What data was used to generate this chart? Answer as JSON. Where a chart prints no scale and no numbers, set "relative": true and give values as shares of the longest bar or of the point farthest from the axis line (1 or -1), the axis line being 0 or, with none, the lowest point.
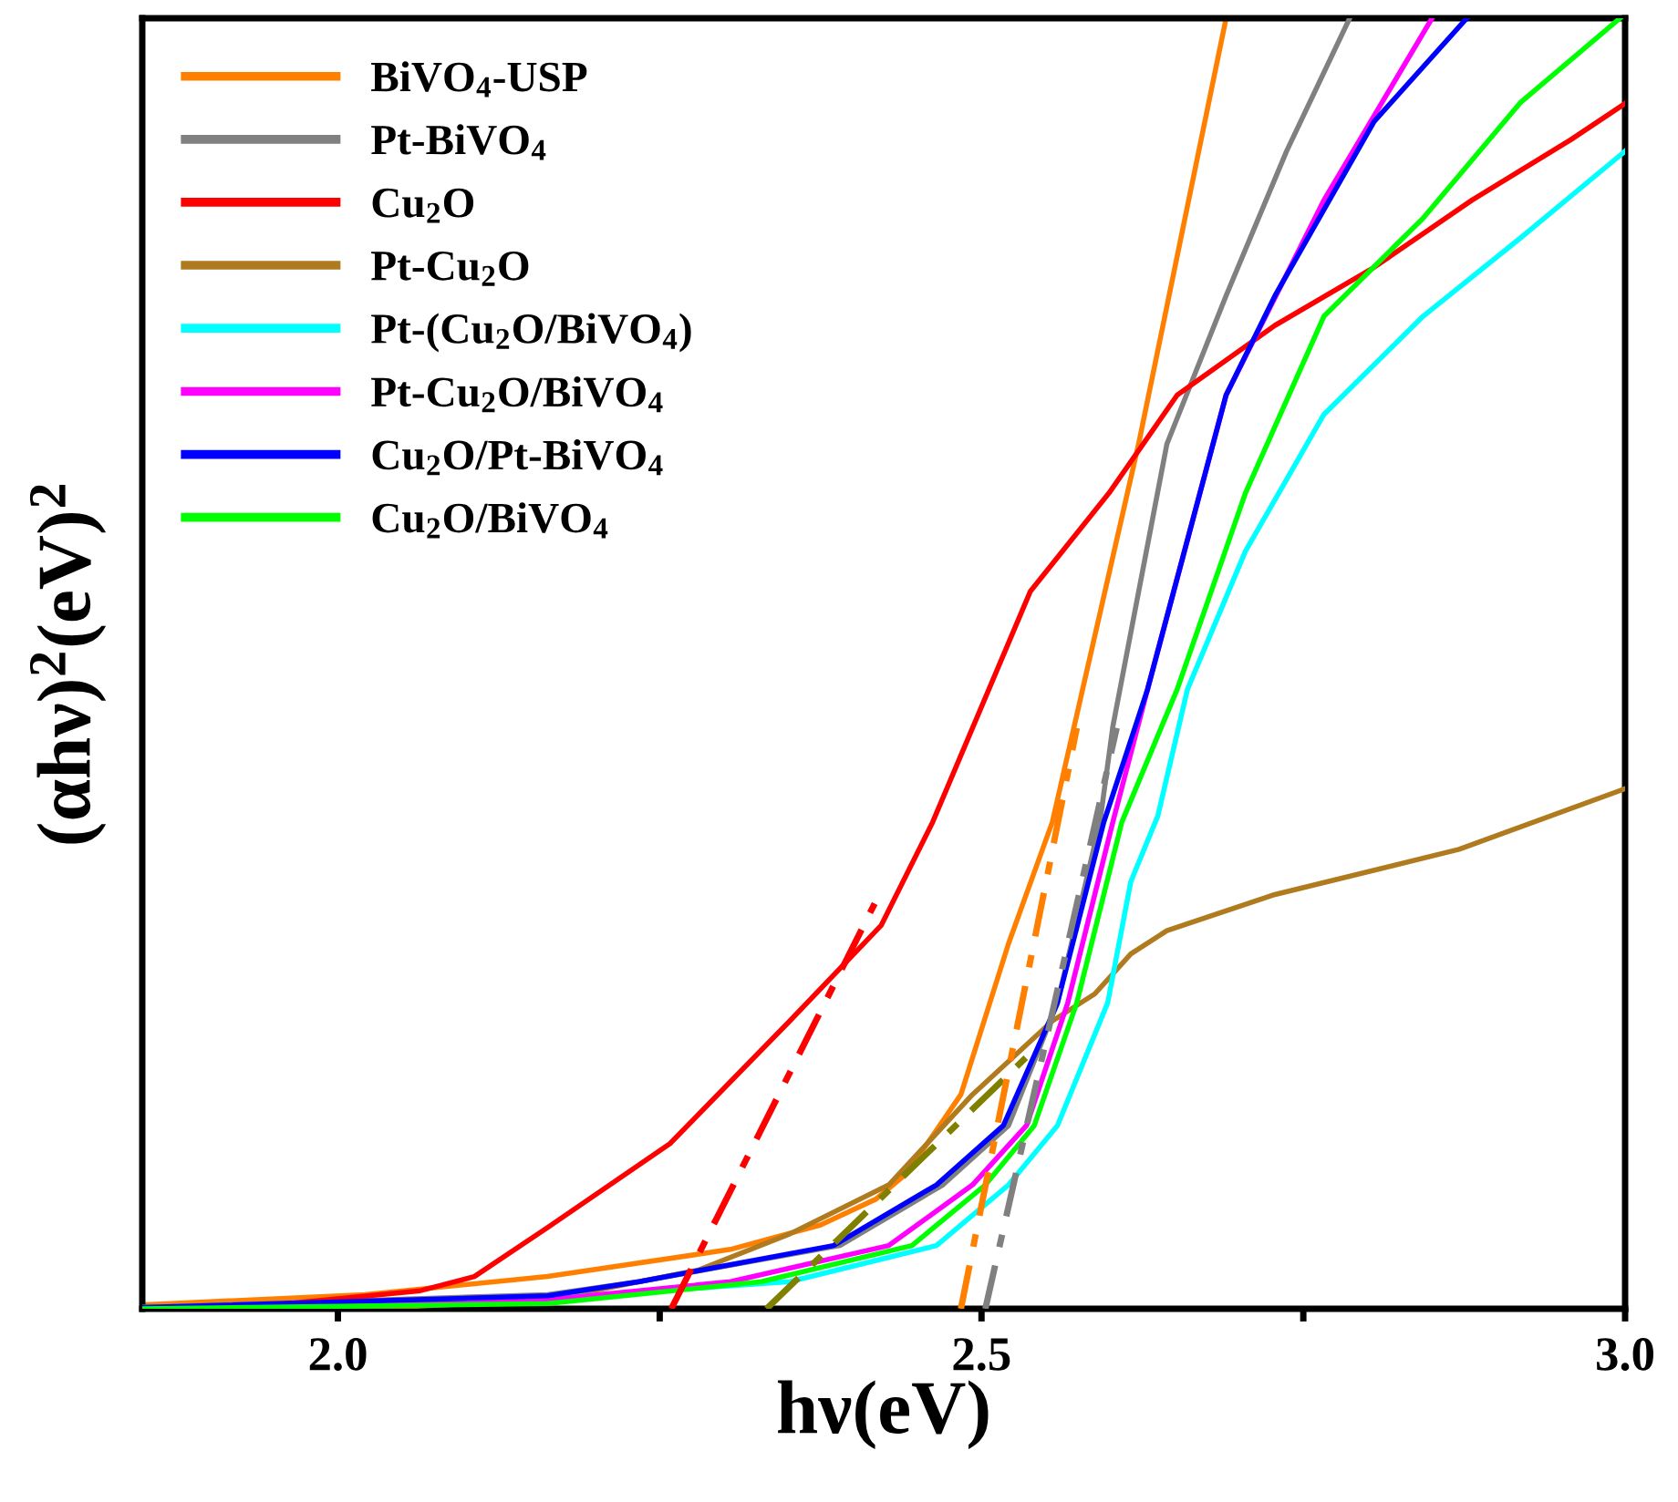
{
  "chart_data": {
    "type": "line",
    "xlabel": "hν(eV)",
    "ylabel": "(αhν)$^{2}$(eV)$^{2}$",
    "relative": true,
    "xlim": [
      1.848,
      3.0
    ],
    "xticks": [
      {
        "value": 2.0,
        "label": "2.0"
      },
      {
        "value": 2.25,
        "label": null
      },
      {
        "value": 2.5,
        "label": "2.5"
      },
      {
        "value": 2.75,
        "label": null
      },
      {
        "value": 3.0,
        "label": "3.0"
      }
    ],
    "legend": "top left",
    "grid": false,
    "marker": "none",
    "line_style": "solid",
    "series": [
      {
        "name": "BiVO$_{4}$-USP",
        "color": "#ff8000",
        "x": [
          1.848,
          2.021,
          2.163,
          2.305,
          2.375,
          2.418,
          2.442,
          2.484,
          2.521,
          2.555,
          2.622,
          2.69
        ],
        "values": [
          0.003,
          0.011,
          0.025,
          0.046,
          0.065,
          0.085,
          0.105,
          0.166,
          0.283,
          0.377,
          0.67,
          1.0
        ]
      },
      {
        "name": "Pt-BiVO$_{4}$",
        "color": "#808080",
        "x": [
          1.848,
          2.163,
          2.234,
          2.39,
          2.47,
          2.521,
          2.559,
          2.592,
          2.602,
          2.644,
          2.69,
          2.737,
          2.786
        ],
        "values": [
          0.001,
          0.011,
          0.021,
          0.049,
          0.096,
          0.142,
          0.237,
          0.377,
          0.451,
          0.67,
          0.785,
          0.897,
          1.0
        ]
      },
      {
        "name": "Cu$_{2}$O",
        "color": "#ff0000",
        "x": [
          1.848,
          1.95,
          2.064,
          2.106,
          2.163,
          2.258,
          2.351,
          2.422,
          2.462,
          2.538,
          2.599,
          2.652,
          2.728,
          2.805,
          2.881,
          2.958,
          3.0
        ],
        "values": [
          0.001,
          0.003,
          0.014,
          0.025,
          0.063,
          0.128,
          0.223,
          0.297,
          0.377,
          0.556,
          0.632,
          0.708,
          0.762,
          0.807,
          0.859,
          0.906,
          0.934
        ]
      },
      {
        "name": "Pt-Cu$_{2}$O",
        "color": "#b07a1e",
        "x": [
          1.848,
          2.021,
          2.163,
          2.28,
          2.351,
          2.428,
          2.493,
          2.555,
          2.588,
          2.616,
          2.644,
          2.728,
          2.871,
          3.0
        ],
        "values": [
          0.0,
          0.0,
          0.007,
          0.03,
          0.058,
          0.096,
          0.166,
          0.223,
          0.244,
          0.275,
          0.293,
          0.321,
          0.356,
          0.403
        ]
      },
      {
        "name": "Pt-(Cu$_{2}$O/BiVO$_{4}$)",
        "color": "#00ffff",
        "x": [
          1.848,
          2.163,
          2.351,
          2.465,
          2.521,
          2.559,
          2.598,
          2.616,
          2.637,
          2.66,
          2.705,
          2.766,
          2.843,
          2.919,
          3.0
        ],
        "values": [
          0.001,
          0.008,
          0.021,
          0.049,
          0.096,
          0.142,
          0.237,
          0.331,
          0.382,
          0.48,
          0.587,
          0.693,
          0.769,
          0.83,
          0.897
        ]
      },
      {
        "name": "Pt-Cu$_{2}$O/BiVO$_{4}$",
        "color": "#ff00ff",
        "x": [
          1.848,
          2.163,
          2.305,
          2.428,
          2.493,
          2.535,
          2.567,
          2.602,
          2.629,
          2.69,
          2.766,
          2.85
        ],
        "values": [
          0.0,
          0.007,
          0.021,
          0.049,
          0.096,
          0.142,
          0.237,
          0.377,
          0.48,
          0.708,
          0.859,
          1.0
        ]
      },
      {
        "name": "Cu$_{2}$O/Pt-BiVO$_{4}$",
        "color": "#0000ff",
        "x": [
          1.848,
          2.163,
          2.234,
          2.385,
          2.465,
          2.517,
          2.559,
          2.595,
          2.629,
          2.69,
          2.728,
          2.805,
          2.877
        ],
        "values": [
          0.001,
          0.01,
          0.021,
          0.049,
          0.096,
          0.142,
          0.237,
          0.377,
          0.48,
          0.708,
          0.785,
          0.92,
          1.0
        ]
      },
      {
        "name": "Cu$_{2}$O/BiVO$_{4}$",
        "color": "#00ff00",
        "x": [
          1.848,
          2.163,
          2.329,
          2.446,
          2.503,
          2.541,
          2.574,
          2.609,
          2.652,
          2.705,
          2.766,
          2.843,
          2.919,
          2.996
        ],
        "values": [
          0.0,
          0.004,
          0.021,
          0.049,
          0.096,
          0.142,
          0.237,
          0.377,
          0.48,
          0.632,
          0.769,
          0.845,
          0.935,
          1.0
        ]
      },
      {
        "color": "#ff0000",
        "line_style": "dashed",
        "x": [
          2.259,
          2.417
        ],
        "values": [
          0.0,
          0.314
        ]
      },
      {
        "color": "#808000",
        "line_style": "dashed",
        "x": [
          2.333,
          2.54
        ],
        "values": [
          0.0,
          0.2
        ]
      },
      {
        "color": "#ff8000",
        "line_style": "dashed",
        "x": [
          2.484,
          2.574
        ],
        "values": [
          0.0,
          0.45
        ]
      },
      {
        "color": "#808080",
        "line_style": "dashed",
        "x": [
          2.503,
          2.605
        ],
        "values": [
          0.0,
          0.45
        ]
      }
    ]
  }
}
